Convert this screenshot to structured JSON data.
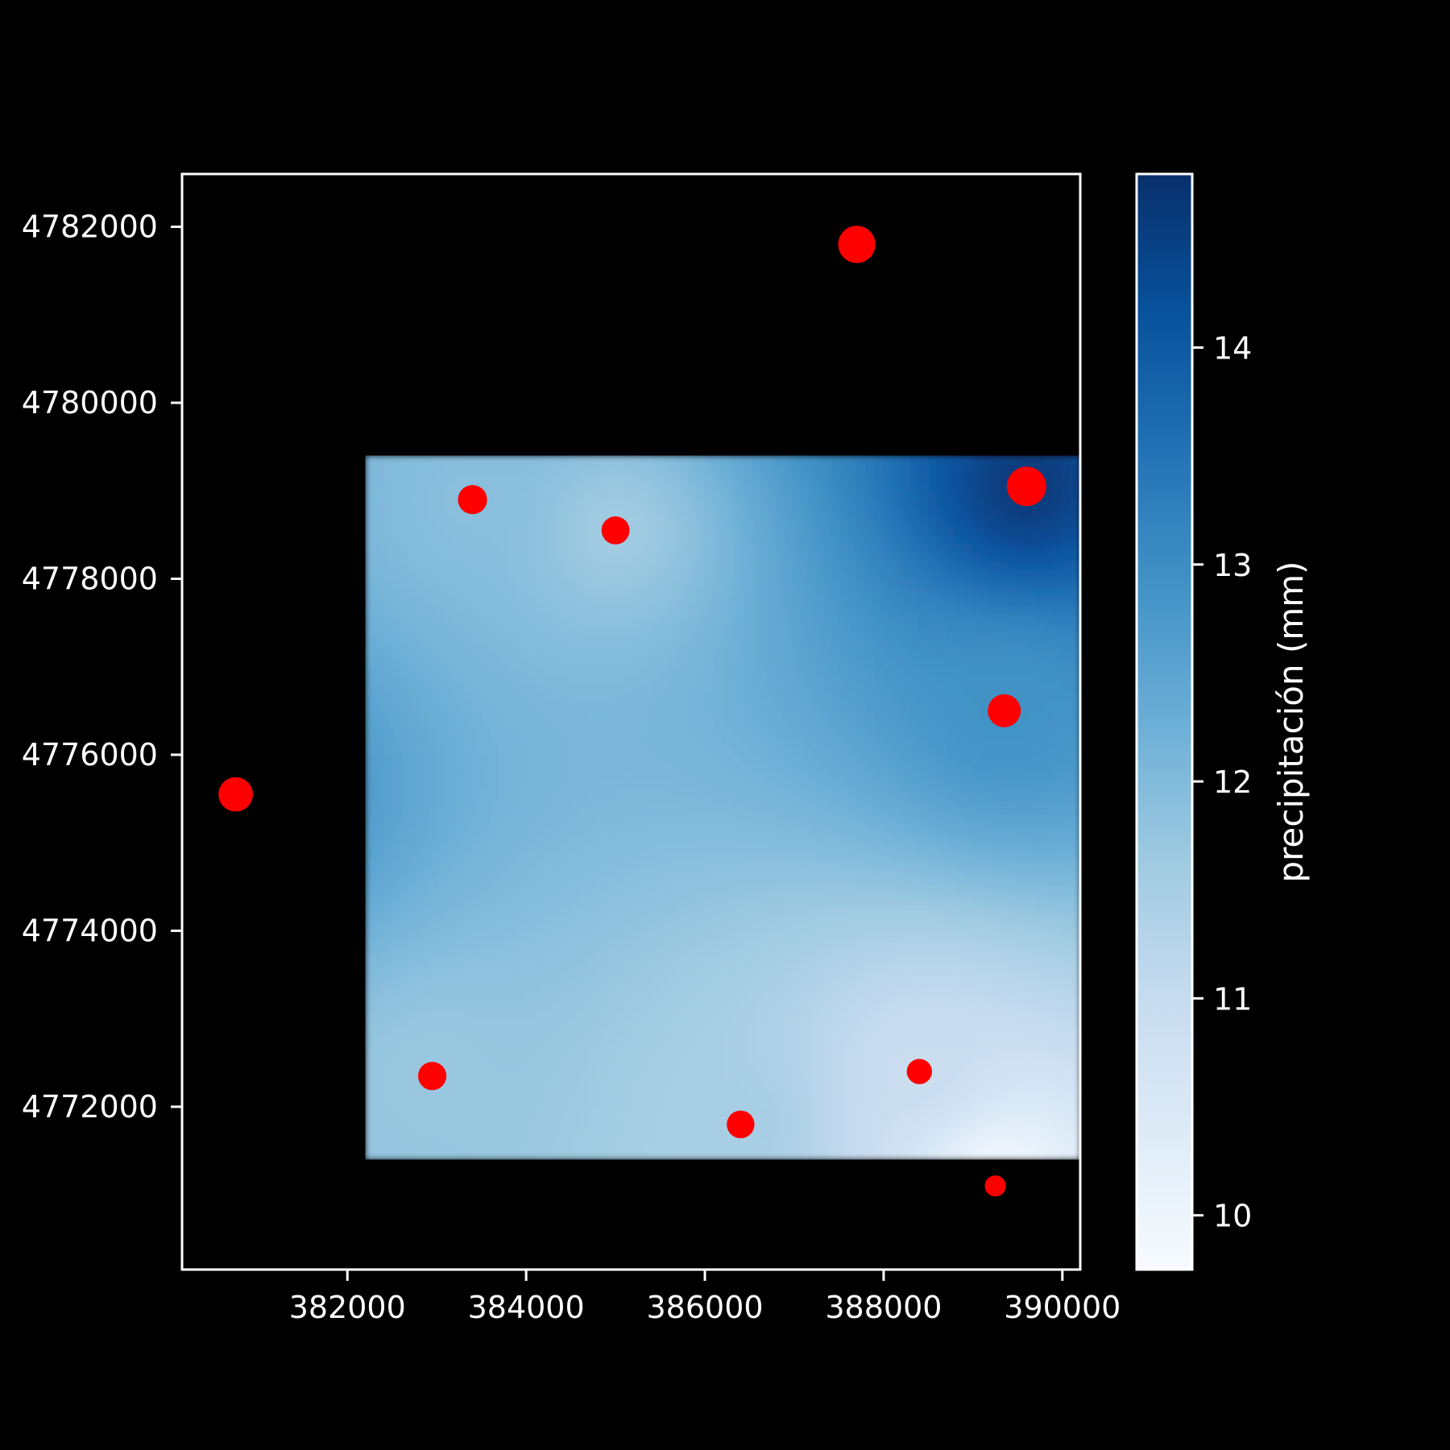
{
  "chart_data": {
    "type": "heatmap",
    "title": "",
    "xlabel": "",
    "ylabel": "",
    "xlim": [
      380150,
      390200
    ],
    "ylim": [
      4770150,
      4782600
    ],
    "x_ticks": [
      382000,
      384000,
      386000,
      388000,
      390000
    ],
    "y_ticks": [
      4772000,
      4774000,
      4776000,
      4778000,
      4780000,
      4782000
    ],
    "grid": false,
    "colormap": "Blues",
    "raster_extent": {
      "x": [
        382200,
        390200
      ],
      "y": [
        4771400,
        4779400
      ]
    },
    "stations": [
      {
        "x": 380750,
        "y": 4775550,
        "value": 13.3
      },
      {
        "x": 383400,
        "y": 4778900,
        "value": 11.9
      },
      {
        "x": 385000,
        "y": 4778550,
        "value": 11.6
      },
      {
        "x": 387700,
        "y": 4781800,
        "value": 14.0
      },
      {
        "x": 389600,
        "y": 4779050,
        "value": 14.6
      },
      {
        "x": 389350,
        "y": 4776500,
        "value": 12.9
      },
      {
        "x": 382950,
        "y": 4772350,
        "value": 11.7
      },
      {
        "x": 386400,
        "y": 4771800,
        "value": 11.5
      },
      {
        "x": 388400,
        "y": 4772400,
        "value": 10.9
      },
      {
        "x": 389250,
        "y": 4771100,
        "value": 9.8
      }
    ],
    "colorbar": {
      "label": "precipitación (mm)",
      "range": [
        9.75,
        14.8
      ],
      "ticks": [
        10,
        11,
        12,
        13,
        14
      ]
    },
    "colors": {
      "background": "#000000",
      "axes": "#ffffff",
      "marker": "#ff0000"
    }
  }
}
